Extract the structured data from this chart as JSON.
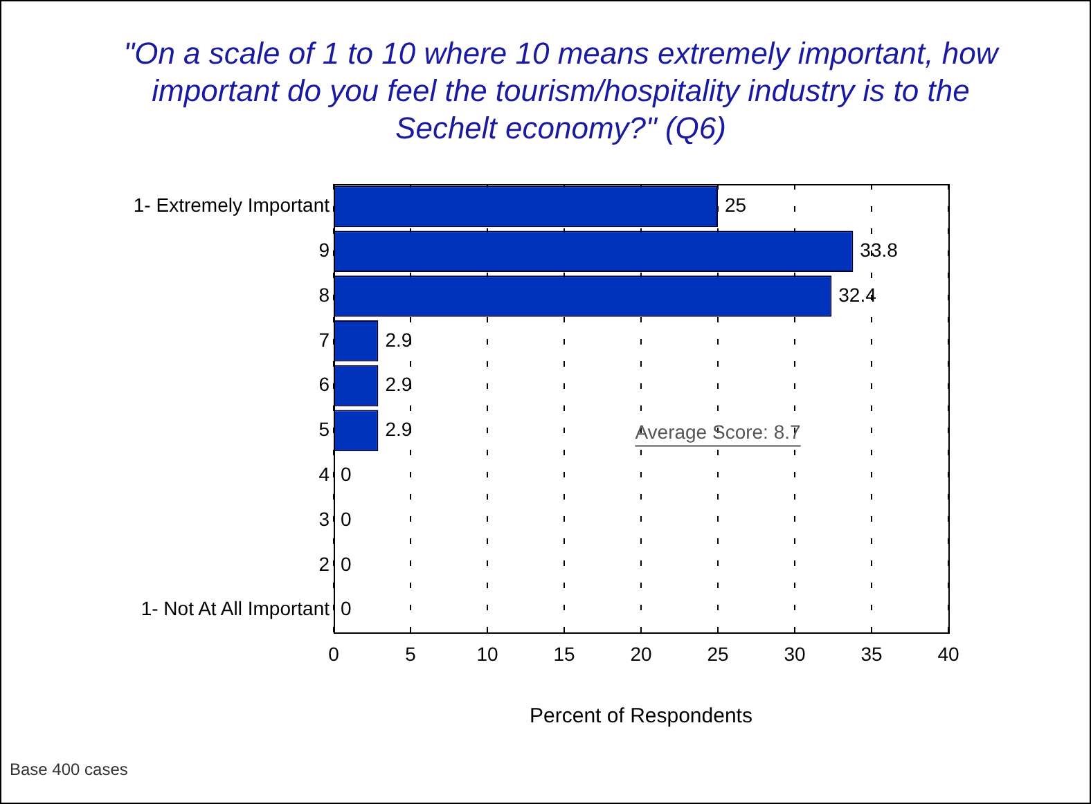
{
  "chart_data": {
    "type": "bar",
    "orientation": "horizontal",
    "title": "\"On a scale of 1 to 10 where 10 means extremely important, how important do you feel the tourism/hospitality industry is to the Sechelt economy?\" (Q6)",
    "categories": [
      "1- Extremely Important",
      "9",
      "8",
      "7",
      "6",
      "5",
      "4",
      "3",
      "2",
      "1- Not At All Important"
    ],
    "values": [
      25,
      33.8,
      32.4,
      2.9,
      2.9,
      2.9,
      0,
      0,
      0,
      0
    ],
    "color": "#0033bb",
    "xlabel": "Percent of Respondents",
    "xlim": [
      0,
      40
    ],
    "xticks": [
      0,
      5,
      10,
      15,
      20,
      25,
      30,
      35,
      40
    ],
    "grid": "x",
    "legend": false,
    "data_labels": true,
    "annotations": [
      "Average Score: 8.7",
      "Base 400 cases"
    ]
  }
}
